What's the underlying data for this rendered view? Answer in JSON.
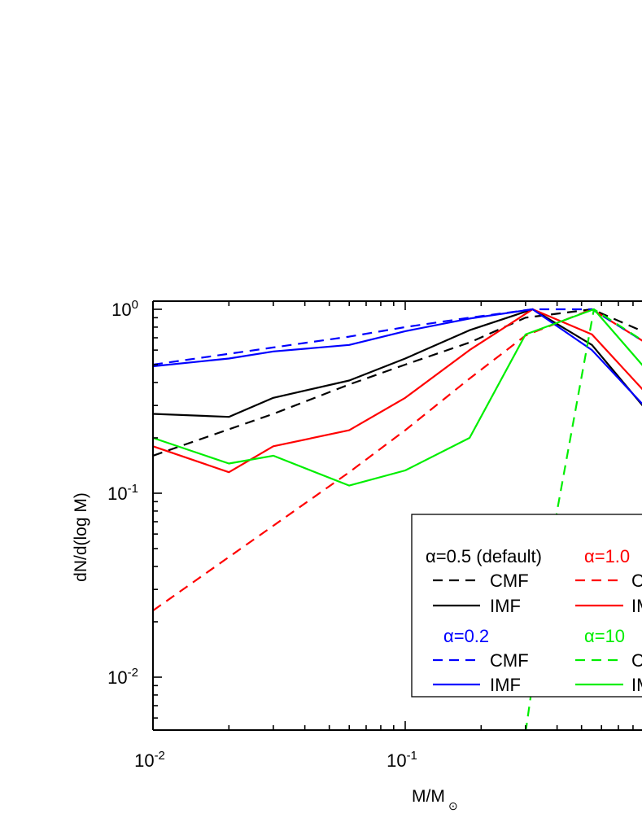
{
  "chart_data": {
    "type": "line",
    "xlabel": "M/M",
    "xlabel_sub": "⊙",
    "ylabel": "dN/d(log M)",
    "xscale": "log",
    "yscale": "log",
    "xlim": [
      0.01,
      1.0
    ],
    "ylim": [
      0.005,
      1.1
    ],
    "x_ticks": [
      {
        "value": 0.01,
        "base": "10",
        "exp": "-2"
      },
      {
        "value": 0.1,
        "base": "10",
        "exp": "-1"
      }
    ],
    "y_ticks": [
      {
        "value": 1,
        "base": "10",
        "exp": "0"
      },
      {
        "value": 0.1,
        "base": "10",
        "exp": "-1"
      },
      {
        "value": 0.01,
        "base": "10",
        "exp": "-2"
      }
    ],
    "grid": false,
    "legend_placement": "bottom-right",
    "series": [
      {
        "group": "α=0.5 (default)",
        "name": "CMF",
        "color": "#000000",
        "style": "dashed",
        "x": [
          0.01,
          0.03,
          0.06,
          0.1,
          0.18,
          0.3,
          0.55,
          1.0
        ],
        "y": [
          0.16,
          0.27,
          0.39,
          0.5,
          0.66,
          0.9,
          1.0,
          0.7
        ]
      },
      {
        "group": "α=0.5 (default)",
        "name": "IMF",
        "color": "#000000",
        "style": "solid",
        "x": [
          0.01,
          0.02,
          0.03,
          0.06,
          0.1,
          0.18,
          0.32,
          0.55,
          1.0
        ],
        "y": [
          0.27,
          0.26,
          0.33,
          0.41,
          0.54,
          0.77,
          1.0,
          0.64,
          0.24
        ]
      },
      {
        "group": "α=1.0",
        "name": "CMF",
        "color": "#ff0000",
        "style": "dashed",
        "x": [
          0.01,
          0.02,
          0.06,
          0.1,
          0.18,
          0.3,
          0.55,
          1.0
        ],
        "y": [
          0.023,
          0.045,
          0.13,
          0.22,
          0.42,
          0.72,
          1.0,
          0.6
        ]
      },
      {
        "group": "α=1.0",
        "name": "IMF",
        "color": "#ff0000",
        "style": "solid",
        "x": [
          0.01,
          0.02,
          0.03,
          0.06,
          0.1,
          0.18,
          0.32,
          0.55,
          1.0
        ],
        "y": [
          0.18,
          0.13,
          0.18,
          0.22,
          0.33,
          0.6,
          1.0,
          0.73,
          0.3
        ]
      },
      {
        "group": "α=0.2",
        "name": "CMF",
        "color": "#0000ff",
        "style": "dashed",
        "x": [
          0.01,
          0.03,
          0.06,
          0.1,
          0.18,
          0.32,
          0.55,
          1.0
        ],
        "y": [
          0.5,
          0.62,
          0.71,
          0.8,
          0.9,
          1.0,
          1.0,
          0.6
        ]
      },
      {
        "group": "α=0.2",
        "name": "IMF",
        "color": "#0000ff",
        "style": "solid",
        "x": [
          0.01,
          0.02,
          0.03,
          0.06,
          0.1,
          0.18,
          0.32,
          0.55,
          1.0
        ],
        "y": [
          0.49,
          0.54,
          0.59,
          0.64,
          0.76,
          0.89,
          1.0,
          0.6,
          0.25
        ]
      },
      {
        "group": "α=10",
        "name": "CMF",
        "color": "#00ee00",
        "style": "dashed",
        "x": [
          0.3,
          0.4,
          0.56,
          1.0
        ],
        "y": [
          0.005,
          0.08,
          1.0,
          0.6
        ]
      },
      {
        "group": "α=10",
        "name": "IMF",
        "color": "#00ee00",
        "style": "solid",
        "x": [
          0.01,
          0.02,
          0.03,
          0.06,
          0.1,
          0.18,
          0.3,
          0.56,
          1.0
        ],
        "y": [
          0.2,
          0.145,
          0.16,
          0.11,
          0.133,
          0.2,
          0.73,
          1.0,
          0.4
        ]
      }
    ],
    "legend": {
      "groups": [
        {
          "title": "α=0.5 (default)",
          "color": "#000000",
          "items": [
            "CMF",
            "IMF"
          ]
        },
        {
          "title": "α=1.0",
          "color": "#ff0000",
          "items": [
            "CMF",
            "IMF"
          ]
        },
        {
          "title": "α=0.2",
          "color": "#0000ff",
          "items": [
            "CMF",
            "IMF"
          ]
        },
        {
          "title": "α=10",
          "color": "#00ee00",
          "items": [
            "CMF",
            "IMF"
          ]
        }
      ]
    }
  }
}
